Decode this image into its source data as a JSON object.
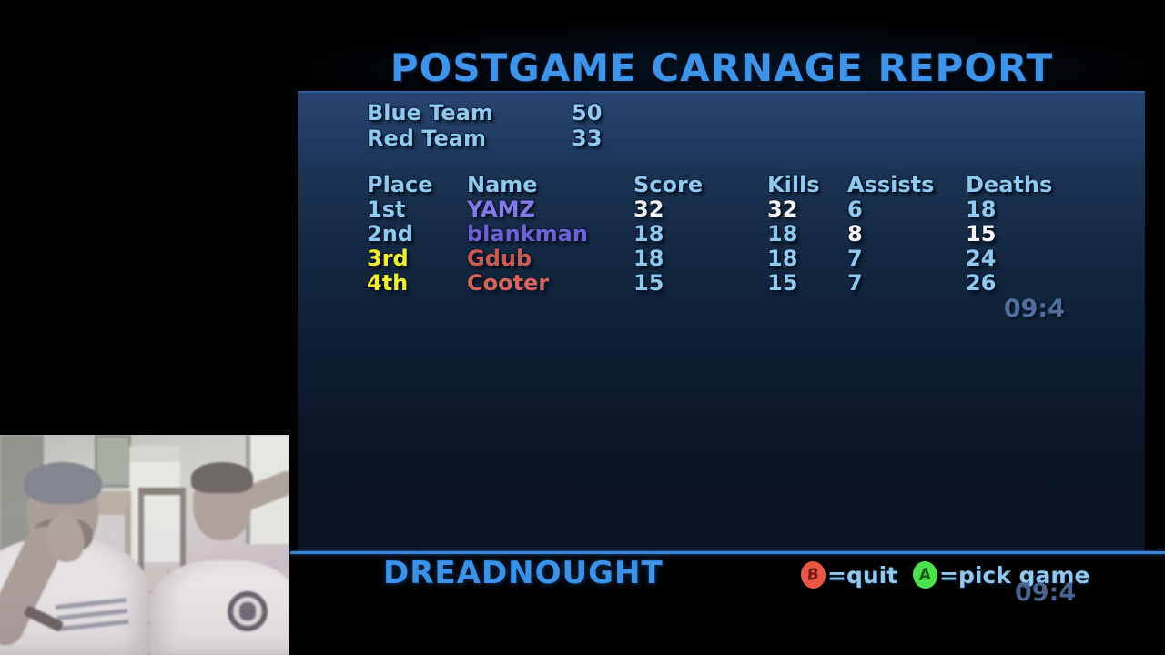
{
  "title": "POSTGAME CARNAGE REPORT",
  "team_summary": [
    {
      "name": "Blue Team",
      "score": "50"
    },
    {
      "name": "Red Team",
      "score": "33"
    }
  ],
  "scoreboard": {
    "headers": [
      "Place",
      "Name",
      "Score",
      "Kills",
      "Assists",
      "Deaths"
    ],
    "rows": [
      {
        "place": {
          "text": "1st",
          "color": "#8fc9ef"
        },
        "name": {
          "text": "YAMZ",
          "color": "#8579e8"
        },
        "stats": [
          {
            "text": "32",
            "color": "#f6f6f6"
          },
          {
            "text": "32",
            "color": "#f6f6f6"
          },
          {
            "text": "6",
            "color": "#8fc9ef"
          },
          {
            "text": "18",
            "color": "#8fc9ef"
          }
        ]
      },
      {
        "place": {
          "text": "2nd",
          "color": "#8fc9ef"
        },
        "name": {
          "text": "blankman",
          "color": "#6e61d6"
        },
        "stats": [
          {
            "text": "18",
            "color": "#8fc9ef"
          },
          {
            "text": "18",
            "color": "#8fc9ef"
          },
          {
            "text": "8",
            "color": "#f6f6f6"
          },
          {
            "text": "15",
            "color": "#f6f6f6"
          }
        ]
      },
      {
        "place": {
          "text": "3rd",
          "color": "#f0ee33"
        },
        "name": {
          "text": "Gdub",
          "color": "#cd5a50"
        },
        "stats": [
          {
            "text": "18",
            "color": "#8fc9ef"
          },
          {
            "text": "18",
            "color": "#8fc9ef"
          },
          {
            "text": "7",
            "color": "#8fc9ef"
          },
          {
            "text": "24",
            "color": "#8fc9ef"
          }
        ]
      },
      {
        "place": {
          "text": "4th",
          "color": "#f0ee33"
        },
        "name": {
          "text": "Cooter",
          "color": "#d4645c"
        },
        "stats": [
          {
            "text": "15",
            "color": "#8fc9ef"
          },
          {
            "text": "15",
            "color": "#8fc9ef"
          },
          {
            "text": "7",
            "color": "#8fc9ef"
          },
          {
            "text": "26",
            "color": "#8fc9ef"
          }
        ]
      }
    ]
  },
  "panel_timer": "09:4",
  "footer": {
    "map_name": "DREADNOUGHT",
    "quit_button": {
      "glyph": "B",
      "label": "=quit",
      "color": "#e85648"
    },
    "pick_button": {
      "glyph": "A",
      "label": "=pick game",
      "color": "#4ce04c"
    },
    "timer": "09:4"
  },
  "colors": {
    "accent_blue": "#3e94e8",
    "text_blue": "#8fc9ef",
    "highlight_white": "#f6f6f6",
    "place_yellow": "#f0ee33"
  }
}
